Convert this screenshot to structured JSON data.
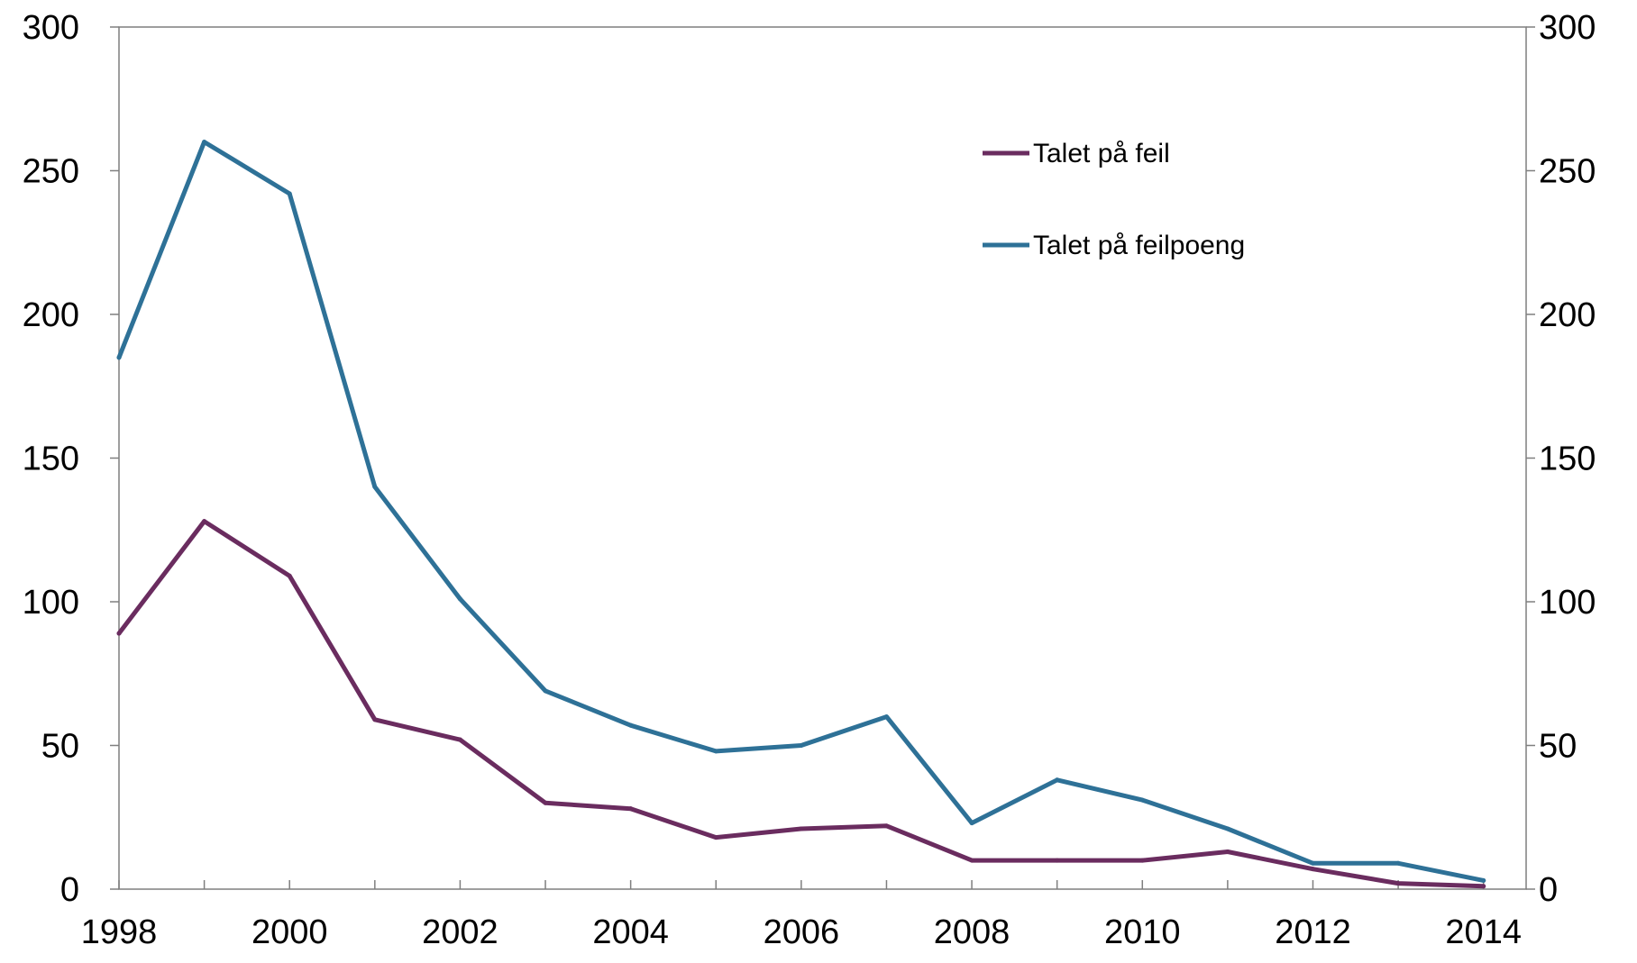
{
  "chart_data": {
    "type": "line",
    "title": "",
    "xlabel": "",
    "ylabel": "",
    "x": [
      1998,
      1999,
      2000,
      2001,
      2002,
      2003,
      2004,
      2005,
      2006,
      2007,
      2008,
      2009,
      2010,
      2011,
      2012,
      2013,
      2014
    ],
    "x_tick_labels": [
      "1998",
      "2000",
      "2002",
      "2004",
      "2006",
      "2008",
      "2010",
      "2012",
      "2014"
    ],
    "y_tick_labels": [
      "0",
      "50",
      "100",
      "150",
      "200",
      "250",
      "300"
    ],
    "ylim": [
      0,
      300
    ],
    "xlim": [
      1998,
      2014.5
    ],
    "grid": false,
    "secondary_y_axis": true,
    "legend": {
      "placement": "top-center",
      "entries": [
        "Talet på feil",
        "Talet på feilpoeng"
      ]
    },
    "series": [
      {
        "name": "Talet på feil",
        "color": "#6a2c5f",
        "values": [
          89,
          128,
          109,
          59,
          52,
          30,
          28,
          18,
          21,
          22,
          10,
          10,
          10,
          13,
          7,
          2,
          1
        ]
      },
      {
        "name": "Talet på feilpoeng",
        "color": "#2e7197",
        "values": [
          185,
          260,
          242,
          140,
          101,
          69,
          57,
          48,
          50,
          60,
          23,
          38,
          31,
          21,
          9,
          9,
          3
        ]
      }
    ]
  }
}
